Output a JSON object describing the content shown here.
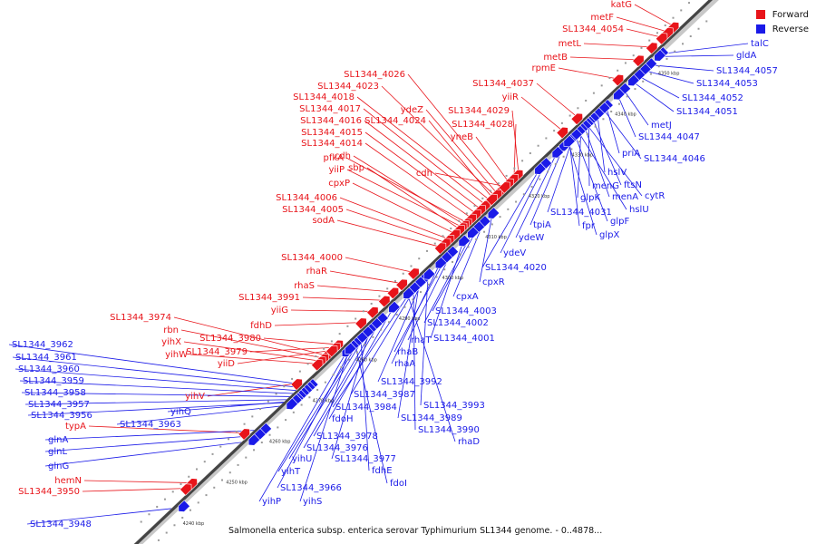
{
  "caption": "Salmonella enterica subsp. enterica serovar Typhimurium SL1344 genome. - 0..4878...",
  "legend": {
    "forward_label": "Forward",
    "reverse_label": "Reverse",
    "forward_color": "#e8141a",
    "reverse_color": "#1a1ae8"
  },
  "kbp_ticks": [
    "4240 kbp",
    "4250 kbp",
    "4260 kbp",
    "4270 kbp",
    "4280 kbp",
    "4290 kbp",
    "4300 kbp",
    "4310 kbp",
    "4320 kbp",
    "4330 kbp",
    "4340 kbp",
    "4350 kbp"
  ],
  "forward_genes": [
    "katG",
    "metF",
    "SL1344_4054",
    "metL",
    "metB",
    "rpmE",
    "SL1344_4037",
    "yiiR",
    "SL1344_4026",
    "SL1344_4023",
    "SL1344_4018",
    "SL1344_4017",
    "SL1344_4016",
    "SL1344_4015",
    "SL1344_4014",
    "ydeZ",
    "SL1344_4024",
    "SL1344_4029",
    "SL1344_4028",
    "yneB",
    "pfkA",
    "cdh",
    "yiiP",
    "sbp",
    "cdh",
    "cpxP",
    "SL1344_4006",
    "SL1344_4005",
    "sodA",
    "SL1344_4000",
    "rhaR",
    "rhaS",
    "SL1344_3991",
    "yiiG",
    "fdhD",
    "SL1344_3974",
    "rbn",
    "yihX",
    "SL1344_3980",
    "yihW",
    "SL1344_3979",
    "yiiD",
    "yihV",
    "typA",
    "hemN",
    "SL1344_3950"
  ],
  "reverse_genes": [
    "talC",
    "gldA",
    "SL1344_4057",
    "SL1344_4053",
    "SL1344_4052",
    "SL1344_4051",
    "metJ",
    "SL1344_4047",
    "priA",
    "SL1344_4046",
    "hslV",
    "ftsN",
    "menG",
    "cytR",
    "menA",
    "glpK",
    "hslU",
    "SL1344_4031",
    "tpiA",
    "glpF",
    "fpr",
    "glpX",
    "ydeW",
    "ydeV",
    "SL1344_4020",
    "cpxR",
    "cpxA",
    "SL1344_4003",
    "SL1344_4002",
    "rhaT",
    "SL1344_4001",
    "rhaB",
    "rhaA",
    "SL1344_3992",
    "SL1344_3987",
    "SL1344_3984",
    "SL1344_3993",
    "SL1344_3989",
    "SL1344_3990",
    "rhaD",
    "fdoH",
    "SL1344_3978",
    "SL1344_3976",
    "SL1344_3977",
    "fdhE",
    "yihU",
    "yihT",
    "fdoI",
    "SL1344_3966",
    "yihP",
    "yihS",
    "SL1344_3962",
    "SL1344_3961",
    "SL1344_3960",
    "SL1344_3959",
    "SL1344_3958",
    "SL1344_3957",
    "SL1344_3956",
    "yihQ",
    "SL1344_3963",
    "glnA",
    "glnL",
    "glnG",
    "SL1344_3948"
  ]
}
